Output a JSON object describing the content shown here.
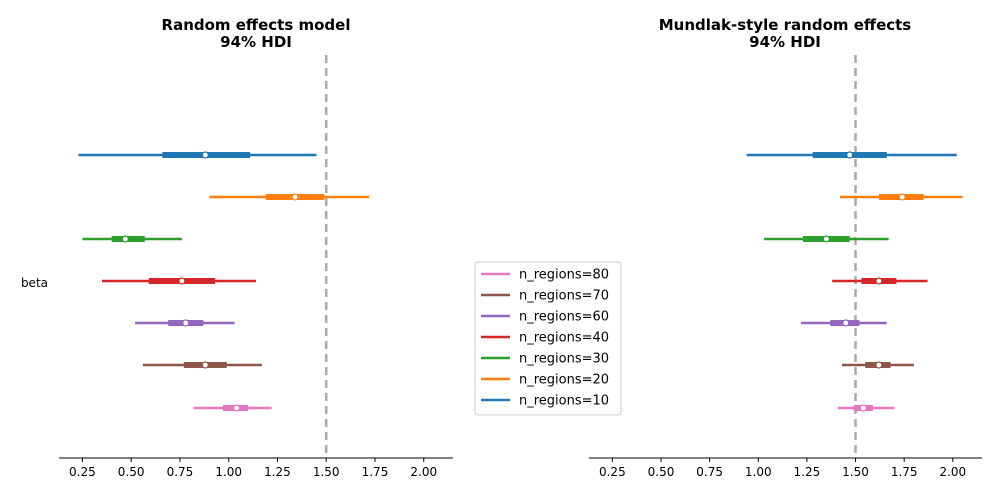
{
  "chart_data": [
    {
      "type": "forest",
      "title": "Random effects model",
      "subtitle": "94% HDI",
      "ylabel": "beta",
      "xlim": [
        0.13,
        2.15
      ],
      "xticks": [
        0.25,
        0.5,
        0.75,
        1.0,
        1.25,
        1.5,
        1.75,
        2.0
      ],
      "xtick_labels": [
        "0.25",
        "0.50",
        "0.75",
        "1.00",
        "1.25",
        "1.50",
        "1.75",
        "2.00"
      ],
      "reference_line": 1.5,
      "grid": false,
      "series": [
        {
          "name": "n_regions=10",
          "mean": 0.88,
          "iqr": [
            0.66,
            1.11
          ],
          "hdi": [
            0.23,
            1.45
          ],
          "color": "#1f77b4"
        },
        {
          "name": "n_regions=20",
          "mean": 1.34,
          "iqr": [
            1.19,
            1.49
          ],
          "hdi": [
            0.9,
            1.72
          ],
          "color": "#ff7f0e"
        },
        {
          "name": "n_regions=30",
          "mean": 0.47,
          "iqr": [
            0.4,
            0.57
          ],
          "hdi": [
            0.25,
            0.76
          ],
          "color": "#2ca02c"
        },
        {
          "name": "n_regions=40",
          "mean": 0.76,
          "iqr": [
            0.59,
            0.93
          ],
          "hdi": [
            0.35,
            1.14
          ],
          "color": "#d62728"
        },
        {
          "name": "n_regions=60",
          "mean": 0.78,
          "iqr": [
            0.69,
            0.87
          ],
          "hdi": [
            0.52,
            1.03
          ],
          "color": "#9467bd"
        },
        {
          "name": "n_regions=70",
          "mean": 0.88,
          "iqr": [
            0.77,
            0.99
          ],
          "hdi": [
            0.56,
            1.17
          ],
          "color": "#8c564b"
        },
        {
          "name": "n_regions=80",
          "mean": 1.04,
          "iqr": [
            0.97,
            1.1
          ],
          "hdi": [
            0.82,
            1.22
          ],
          "color": "#e377c2"
        }
      ]
    },
    {
      "type": "forest",
      "title": "Mundlak-style random effects",
      "subtitle": "94% HDI",
      "xlim": [
        0.13,
        2.15
      ],
      "xticks": [
        0.25,
        0.5,
        0.75,
        1.0,
        1.25,
        1.5,
        1.75,
        2.0
      ],
      "xtick_labels": [
        "0.25",
        "0.50",
        "0.75",
        "1.00",
        "1.25",
        "1.50",
        "1.75",
        "2.00"
      ],
      "reference_line": 1.5,
      "grid": false,
      "series": [
        {
          "name": "n_regions=10",
          "mean": 1.47,
          "iqr": [
            1.28,
            1.66
          ],
          "hdi": [
            0.94,
            2.02
          ],
          "color": "#1f77b4"
        },
        {
          "name": "n_regions=20",
          "mean": 1.74,
          "iqr": [
            1.62,
            1.85
          ],
          "hdi": [
            1.42,
            2.05
          ],
          "color": "#ff7f0e"
        },
        {
          "name": "n_regions=30",
          "mean": 1.35,
          "iqr": [
            1.23,
            1.47
          ],
          "hdi": [
            1.03,
            1.67
          ],
          "color": "#2ca02c"
        },
        {
          "name": "n_regions=40",
          "mean": 1.62,
          "iqr": [
            1.53,
            1.71
          ],
          "hdi": [
            1.38,
            1.87
          ],
          "color": "#d62728"
        },
        {
          "name": "n_regions=60",
          "mean": 1.45,
          "iqr": [
            1.37,
            1.52
          ],
          "hdi": [
            1.22,
            1.66
          ],
          "color": "#9467bd"
        },
        {
          "name": "n_regions=70",
          "mean": 1.62,
          "iqr": [
            1.55,
            1.68
          ],
          "hdi": [
            1.43,
            1.8
          ],
          "color": "#8c564b"
        },
        {
          "name": "n_regions=80",
          "mean": 1.54,
          "iqr": [
            1.49,
            1.59
          ],
          "hdi": [
            1.41,
            1.7
          ],
          "color": "#e377c2"
        }
      ]
    }
  ],
  "legend": {
    "placement": "between panels, lower",
    "entries": [
      {
        "label": "n_regions=80",
        "color": "#e377c2"
      },
      {
        "label": "n_regions=70",
        "color": "#8c564b"
      },
      {
        "label": "n_regions=60",
        "color": "#9467bd"
      },
      {
        "label": "n_regions=40",
        "color": "#d62728"
      },
      {
        "label": "n_regions=30",
        "color": "#2ca02c"
      },
      {
        "label": "n_regions=20",
        "color": "#ff7f0e"
      },
      {
        "label": "n_regions=10",
        "color": "#1f77b4"
      }
    ]
  }
}
